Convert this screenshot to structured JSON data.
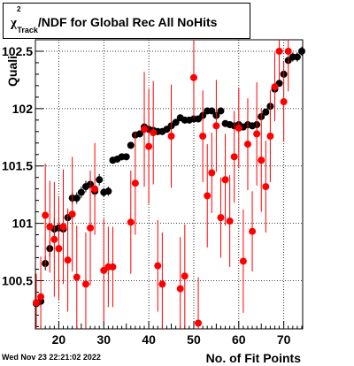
{
  "chart_data": {
    "type": "scatter",
    "title_symbol": "χ",
    "title_sup": "2",
    "title_sub": "Track",
    "title_rest": "/NDF for Global Rec All NoHits",
    "xlabel": "No. of Fit Points",
    "ylabel": "Quali",
    "xlim": [
      14.8,
      74.2
    ],
    "ylim": [
      100.08,
      102.6
    ],
    "x_ticks": [
      20,
      30,
      40,
      50,
      60,
      70
    ],
    "y_ticks": [
      100.5,
      101,
      101.5,
      102,
      102.5
    ],
    "y_tick_labels": [
      "100.5",
      "101",
      "101.5",
      "102",
      "102.5"
    ],
    "grid": true,
    "date_stamp": "Wed Nov 23 22:21:02 2022",
    "series": [
      {
        "marker": "filled-circle",
        "color": "#000000",
        "x": [
          15,
          16,
          17,
          18,
          19,
          20,
          21,
          22,
          23,
          24,
          25,
          26,
          27,
          28,
          29,
          30,
          31,
          32,
          33,
          34,
          35,
          36,
          37,
          38,
          39,
          40,
          41,
          42,
          43,
          44,
          45,
          46,
          47,
          48,
          49,
          50,
          51,
          52,
          53,
          54,
          55,
          56,
          57,
          58,
          59,
          60,
          61,
          62,
          63,
          64,
          65,
          66,
          67,
          68,
          69,
          70,
          71,
          72,
          73,
          74
        ],
        "y": [
          100.3,
          100.32,
          100.65,
          100.78,
          100.95,
          100.96,
          100.95,
          101.05,
          101.22,
          101.22,
          101.27,
          101.32,
          101.34,
          101.28,
          101.38,
          101.27,
          101.28,
          101.55,
          101.56,
          101.58,
          101.58,
          101.68,
          101.77,
          101.78,
          101.84,
          101.82,
          101.81,
          101.8,
          101.8,
          101.82,
          101.85,
          101.88,
          101.92,
          101.9,
          101.9,
          101.91,
          101.91,
          101.94,
          101.98,
          101.98,
          101.94,
          101.98,
          101.87,
          101.86,
          101.85,
          101.86,
          101.84,
          101.86,
          101.85,
          101.86,
          101.93,
          101.97,
          102.02,
          102.17,
          102.22,
          102.3,
          102.42,
          102.45,
          102.45,
          102.5
        ],
        "yerr": [
          0.05,
          0.05,
          0.06,
          0.07,
          0.09,
          0.08,
          0.07,
          0.06,
          0.05,
          0.05,
          0.05,
          0.05,
          0.05,
          0.05,
          0.05,
          0.04,
          0.04,
          0.03,
          0.03,
          0.03,
          0.03,
          0.03,
          0.03,
          0.03,
          0.03,
          0.03,
          0.03,
          0.03,
          0.03,
          0.03,
          0.03,
          0.03,
          0.03,
          0.03,
          0.03,
          0.03,
          0.03,
          0.03,
          0.03,
          0.03,
          0.03,
          0.03,
          0.03,
          0.03,
          0.03,
          0.03,
          0.03,
          0.03,
          0.03,
          0.03,
          0.03,
          0.03,
          0.03,
          0.03,
          0.03,
          0.03,
          0.03,
          0.04,
          0.04,
          0.04
        ]
      },
      {
        "marker": "filled-circle",
        "color": "#ff0000",
        "x": [
          15,
          16,
          17,
          18,
          19,
          20,
          21,
          22,
          23,
          24,
          26,
          27,
          28,
          30,
          31,
          32,
          36,
          37,
          39,
          40,
          41,
          42,
          43,
          45,
          47,
          48,
          50,
          51,
          52,
          53,
          54,
          55,
          56,
          57,
          58,
          59,
          60,
          61,
          62,
          63,
          64,
          65,
          66,
          67,
          68,
          69,
          70,
          71
        ],
        "y": [
          100.31,
          100.36,
          101.07,
          100.97,
          100.86,
          100.78,
          100.97,
          100.68,
          101.08,
          100.53,
          100.47,
          100.96,
          101.3,
          100.59,
          100.62,
          100.62,
          101.01,
          101.35,
          101.82,
          101.67,
          101.79,
          100.63,
          100.47,
          101.76,
          100.43,
          100.54,
          102.27,
          100.13,
          101.76,
          101.24,
          101.44,
          101.85,
          101.05,
          101.38,
          101.02,
          101.58,
          101.83,
          100.67,
          101.69,
          100.93,
          101.78,
          101.55,
          101.32,
          101.76,
          102.19,
          102.5,
          102.06,
          102.5
        ],
        "yerr": [
          0.25,
          0.35,
          0.45,
          0.4,
          0.5,
          0.45,
          0.5,
          0.45,
          0.5,
          0.45,
          0.45,
          0.5,
          0.4,
          0.45,
          0.35,
          0.35,
          0.45,
          0.45,
          0.5,
          0.5,
          0.45,
          0.4,
          0.45,
          0.45,
          0.45,
          0.45,
          0.35,
          0.4,
          0.4,
          0.45,
          0.35,
          0.4,
          0.35,
          0.4,
          0.4,
          0.4,
          0.35,
          0.45,
          0.4,
          0.35,
          0.45,
          0.45,
          0.4,
          0.4,
          0.3,
          0.25,
          0.35,
          0.35
        ]
      }
    ]
  }
}
